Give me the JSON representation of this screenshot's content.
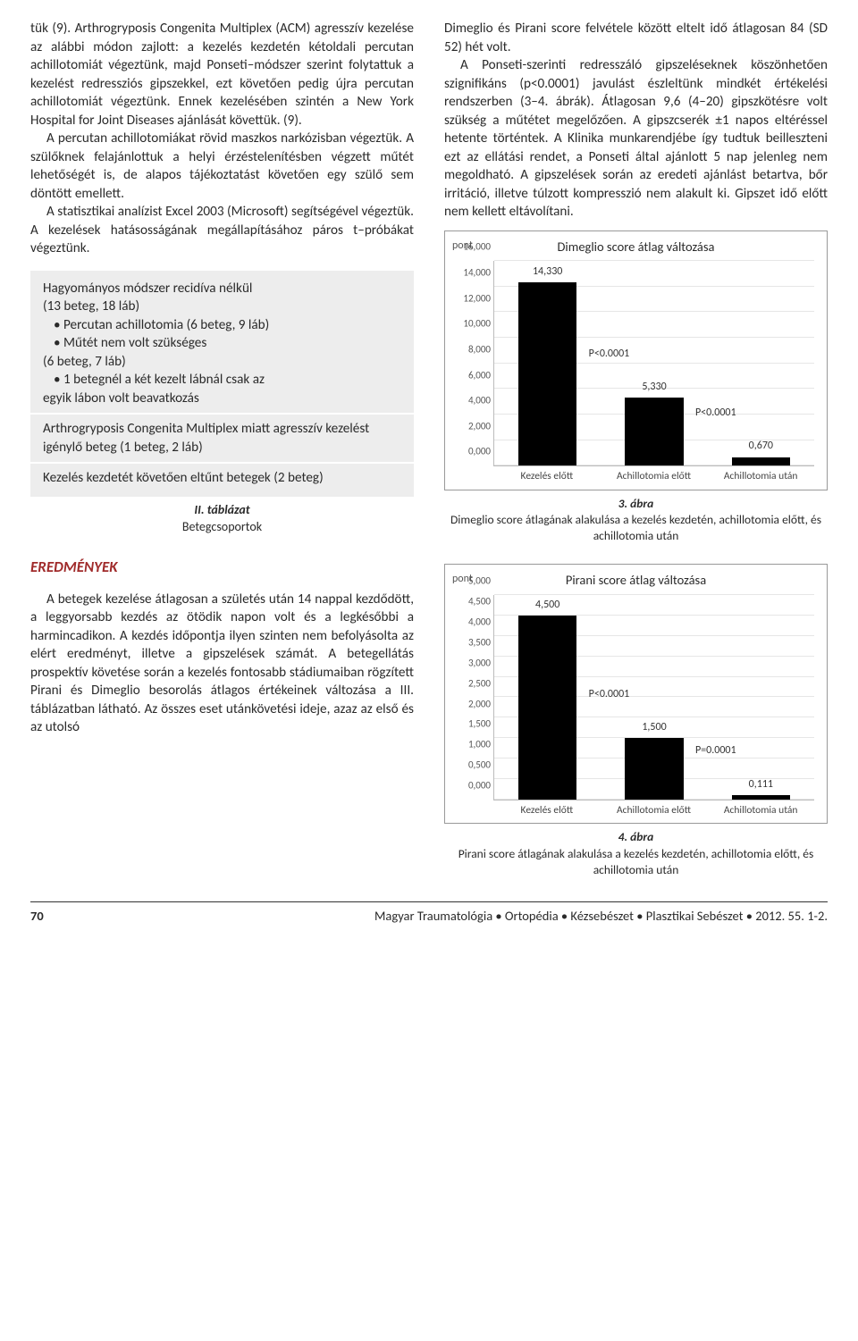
{
  "left": {
    "p1": "tük (9). Arthrogryposis Congenita Multiplex (ACM) agresszív kezelése az alábbi módon zajlott: a kezelés kezdetén kétoldali percutan achillotomiát végeztünk, majd Ponseti–módszer szerint folytattuk a kezelést redressziós gipszekkel, ezt követően pedig újra percutan achillotomiát végeztünk. Ennek kezelésében szintén a New York Hospital for Joint Diseases ajánlását követtük. (9).",
    "p2": "A percutan achillotomiákat rövid maszkos narkózisban végeztük. A szülőknek felajánlottuk a helyi érzéstelenítésben végzett műtét lehetőségét is, de alapos tájékoztatást követően egy szülő sem döntött emellett.",
    "p3": "A statisztikai analízist Excel 2003 (Microsoft) segítségével végeztük. A kezelések hatásosságának megállapításához páros t–próbákat végeztünk."
  },
  "box": {
    "l1": "Hagyományos módszer recidíva nélkül",
    "l2": "(13 beteg, 18 láb)",
    "b1": "•  Percutan achillotomia (6 beteg, 9 láb)",
    "b2": "•  Műtét nem volt szükséges",
    "l3": "(6 beteg, 7 láb)",
    "b3": "•  1 betegnél a két kezelt lábnál csak az",
    "l4": "egyik lábon volt beavatkozás",
    "g2": "Arthrogryposis Congenita Multiplex miatt agresszív kezelést igénylő beteg (1 beteg, 2 láb)",
    "g3": "Kezelés kezdetét követően eltűnt betegek (2 beteg)",
    "caption_b": "II. táblázat",
    "caption": "Betegcsoportok"
  },
  "section": "EREDMÉNYEK",
  "result_p": "A betegek kezelése átlagosan a születés után 14 nappal kezdődött, a leggyorsabb kezdés az ötödik napon volt és a legkésőbbi a harmincadikon. A kezdés időpontja ilyen szinten nem befolyásolta az elért eredményt, illetve a gipszelések számát. A betegellátás prospektív követése során a kezelés fontosabb stádiumaiban rögzített Pirani és Dimeglio besorolás átlagos értékeinek változása a III. táblázatban látható. Az összes eset utánkövetési ideje, azaz az első és az utolsó",
  "right": {
    "p1": "Dimeglio és Pirani score felvétele között eltelt idő átlagosan 84 (SD 52) hét volt.",
    "p2": "A Ponseti-szerinti redresszáló gipszeléseknek köszönhetően szignifikáns (p<0.0001) javulást észleltünk mindkét értékelési rendszerben (3–4. ábrák). Átlagosan 9,6 (4–20) gipszkötésre volt szükség a műtétet megelőzően. A gipszcserék ±1 napos eltéréssel hetente történtek. A Klinika munkarendjébe így tudtuk beilleszteni ezt az ellátási rendet, a Ponseti által ajánlott 5 nap jelenleg nem megoldható. A gipszelések során az eredeti ajánlást betartva, bőr irritáció, illetve túlzott kompresszió nem alakult ki. Gipszet idő előtt nem kellett eltávolítani."
  },
  "fig3": {
    "title": "Dimeglio score átlag változása",
    "ylabel": "pont",
    "ymax": 16,
    "ytick": 2,
    "decimals": 3,
    "categories": [
      "Kezelés előtt",
      "Achillotomia előtt",
      "Achillotomia után"
    ],
    "values": [
      14.33,
      5.33,
      0.67
    ],
    "value_labels": [
      "14,330",
      "5,330",
      "0,670"
    ],
    "p_annotations": [
      {
        "text": "P<0.0001",
        "between": [
          0,
          1
        ]
      },
      {
        "text": "P<0.0001",
        "between": [
          1,
          2
        ]
      }
    ],
    "bar_color": "#000000",
    "grid_color": "#e6e6e6",
    "caption_b": "3. ábra",
    "caption": "Dimeglio score átlagának alakulása a kezelés kezdetén, achillotomia előtt, és achillotomia után"
  },
  "fig4": {
    "title": "Pirani score átlag változása",
    "ylabel": "pont",
    "ymax": 5,
    "ytick": 0.5,
    "decimals": 3,
    "categories": [
      "Kezelés előtt",
      "Achillotomia előtt",
      "Achillotomia után"
    ],
    "values": [
      4.5,
      1.5,
      0.111
    ],
    "value_labels": [
      "4,500",
      "1,500",
      "0,111"
    ],
    "p_annotations": [
      {
        "text": "P<0.0001",
        "between": [
          0,
          1
        ]
      },
      {
        "text": "P=0.0001",
        "between": [
          1,
          2
        ]
      }
    ],
    "bar_color": "#000000",
    "grid_color": "#e6e6e6",
    "caption_b": "4. ábra",
    "caption": "Pirani score átlagának alakulása a kezelés kezdetén, achillotomia előtt, és achillotomia után"
  },
  "footer": {
    "page": "70",
    "journal": "Magyar Traumatológia • Ortopédia • Kézsebészet • Plasztikai Sebészet • 2012. 55. 1-2."
  }
}
